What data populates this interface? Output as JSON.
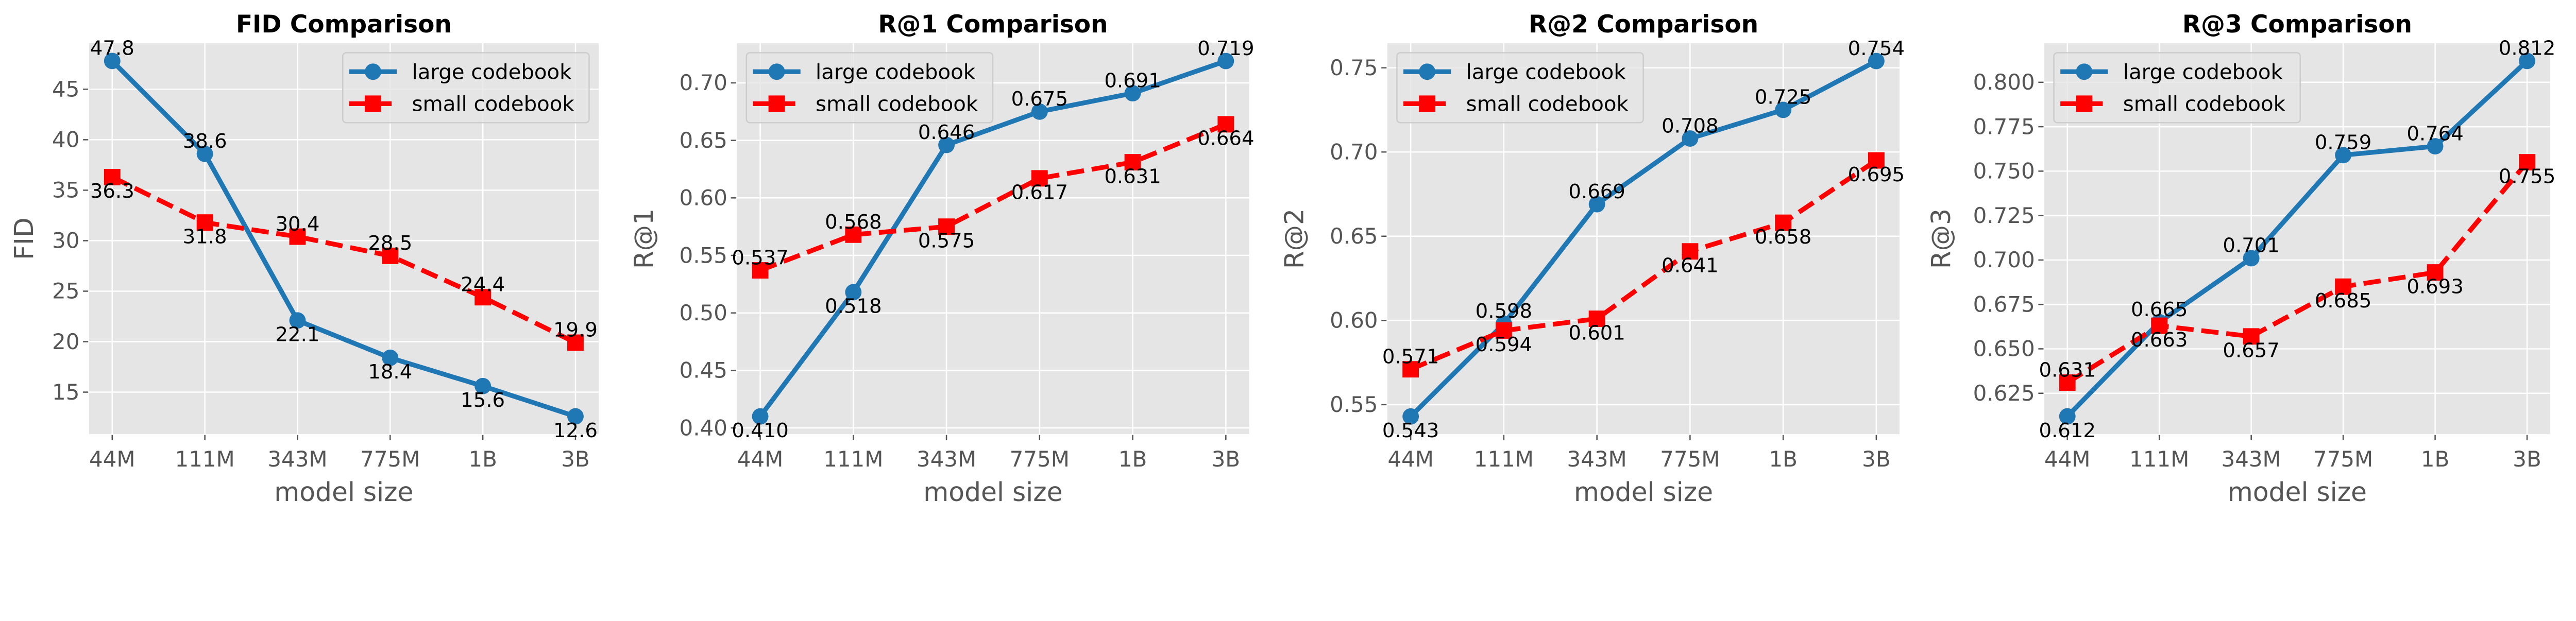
{
  "colors": {
    "large": "#1f77b4",
    "small": "#ff0000",
    "background": "#e5e5e5",
    "grid": "#ffffff"
  },
  "chart_data": [
    {
      "type": "line",
      "title": "FID Comparison",
      "xlabel": "model size",
      "ylabel": "FID",
      "categories": [
        "44M",
        "111M",
        "343M",
        "775M",
        "1B",
        "3B"
      ],
      "series": [
        {
          "name": "large codebook",
          "values": [
            47.8,
            38.6,
            22.1,
            18.4,
            15.6,
            12.6
          ],
          "labels": [
            "47.8",
            "38.6",
            "22.1",
            "18.4",
            "15.6",
            "12.6"
          ]
        },
        {
          "name": "small codebook",
          "values": [
            36.3,
            31.8,
            30.4,
            28.5,
            24.4,
            19.9
          ],
          "labels": [
            "36.3",
            "31.8",
            "30.4",
            "28.5",
            "24.4",
            "19.9"
          ]
        }
      ],
      "ylim": [
        10.84,
        49.56
      ],
      "yticks": [
        15,
        20,
        25,
        30,
        35,
        40,
        45
      ],
      "ytick_labels": [
        "15",
        "20",
        "25",
        "30",
        "35",
        "40",
        "45"
      ],
      "legend": "upper-right",
      "grid": true
    },
    {
      "type": "line",
      "title": "R@1 Comparison",
      "xlabel": "model size",
      "ylabel": "R@1",
      "categories": [
        "44M",
        "111M",
        "343M",
        "775M",
        "1B",
        "3B"
      ],
      "series": [
        {
          "name": "large codebook",
          "values": [
            0.41,
            0.518,
            0.646,
            0.675,
            0.691,
            0.719
          ],
          "labels": [
            "0.410",
            "0.518",
            "0.646",
            "0.675",
            "0.691",
            "0.719"
          ]
        },
        {
          "name": "small codebook",
          "values": [
            0.537,
            0.568,
            0.575,
            0.617,
            0.631,
            0.664
          ],
          "labels": [
            "0.537",
            "0.568",
            "0.575",
            "0.617",
            "0.631",
            "0.664"
          ]
        }
      ],
      "ylim": [
        0.3946,
        0.7345
      ],
      "yticks": [
        0.4,
        0.45,
        0.5,
        0.55,
        0.6,
        0.65,
        0.7
      ],
      "ytick_labels": [
        "0.40",
        "0.45",
        "0.50",
        "0.55",
        "0.60",
        "0.65",
        "0.70"
      ],
      "legend": "upper-left",
      "grid": true
    },
    {
      "type": "line",
      "title": "R@2 Comparison",
      "xlabel": "model size",
      "ylabel": "R@2",
      "categories": [
        "44M",
        "111M",
        "343M",
        "775M",
        "1B",
        "3B"
      ],
      "series": [
        {
          "name": "large codebook",
          "values": [
            0.543,
            0.598,
            0.669,
            0.708,
            0.725,
            0.754
          ],
          "labels": [
            "0.543",
            "0.598",
            "0.669",
            "0.708",
            "0.725",
            "0.754"
          ]
        },
        {
          "name": "small codebook",
          "values": [
            0.571,
            0.594,
            0.601,
            0.641,
            0.658,
            0.695
          ],
          "labels": [
            "0.571",
            "0.594",
            "0.601",
            "0.641",
            "0.658",
            "0.695"
          ]
        }
      ],
      "ylim": [
        0.5325,
        0.7646
      ],
      "yticks": [
        0.55,
        0.6,
        0.65,
        0.7,
        0.75
      ],
      "ytick_labels": [
        "0.55",
        "0.60",
        "0.65",
        "0.70",
        "0.75"
      ],
      "legend": "upper-left",
      "grid": true
    },
    {
      "type": "line",
      "title": "R@3 Comparison",
      "xlabel": "model size",
      "ylabel": "R@3",
      "categories": [
        "44M",
        "111M",
        "343M",
        "775M",
        "1B",
        "3B"
      ],
      "series": [
        {
          "name": "large codebook",
          "values": [
            0.612,
            0.665,
            0.701,
            0.759,
            0.764,
            0.812
          ],
          "labels": [
            "0.612",
            "0.665",
            "0.701",
            "0.759",
            "0.764",
            "0.812"
          ]
        },
        {
          "name": "small codebook",
          "values": [
            0.631,
            0.663,
            0.657,
            0.685,
            0.693,
            0.755
          ],
          "labels": [
            "0.631",
            "0.663",
            "0.657",
            "0.685",
            "0.693",
            "0.755"
          ]
        }
      ],
      "ylim": [
        0.602,
        0.822
      ],
      "yticks": [
        0.625,
        0.65,
        0.675,
        0.7,
        0.725,
        0.75,
        0.775,
        0.8
      ],
      "ytick_labels": [
        "0.625",
        "0.650",
        "0.675",
        "0.700",
        "0.725",
        "0.750",
        "0.775",
        "0.800"
      ],
      "legend": "upper-left",
      "grid": true
    }
  ]
}
